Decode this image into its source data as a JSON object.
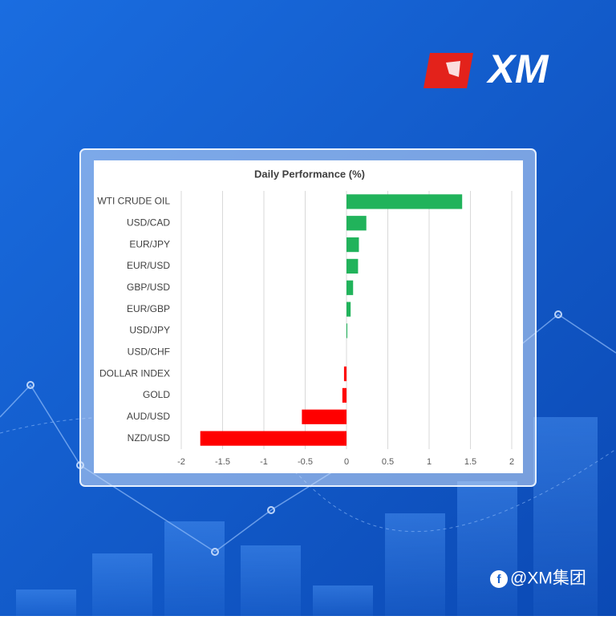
{
  "chart_data": {
    "type": "bar",
    "orientation": "horizontal",
    "title": "Daily Performance (%)",
    "categories": [
      "WTI CRUDE OIL",
      "USD/CAD",
      "EUR/JPY",
      "EUR/USD",
      "GBP/USD",
      "EUR/GBP",
      "USD/JPY",
      "USD/CHF",
      "DOLLAR INDEX",
      "GOLD",
      "AUD/USD",
      "NZD/USD"
    ],
    "values": [
      1.4,
      0.24,
      0.15,
      0.14,
      0.08,
      0.05,
      0.01,
      0,
      -0.03,
      -0.05,
      -0.54,
      -1.77
    ],
    "colors": {
      "positive": "#21b35b",
      "negative": "#ff0000"
    },
    "xlim": [
      -2,
      2
    ],
    "xticks": [
      -2,
      -1.5,
      -1,
      -0.5,
      0,
      0.5,
      1,
      1.5,
      2
    ],
    "grid": true
  },
  "brand": {
    "logo": "XM",
    "watermark": "@XM集团"
  }
}
